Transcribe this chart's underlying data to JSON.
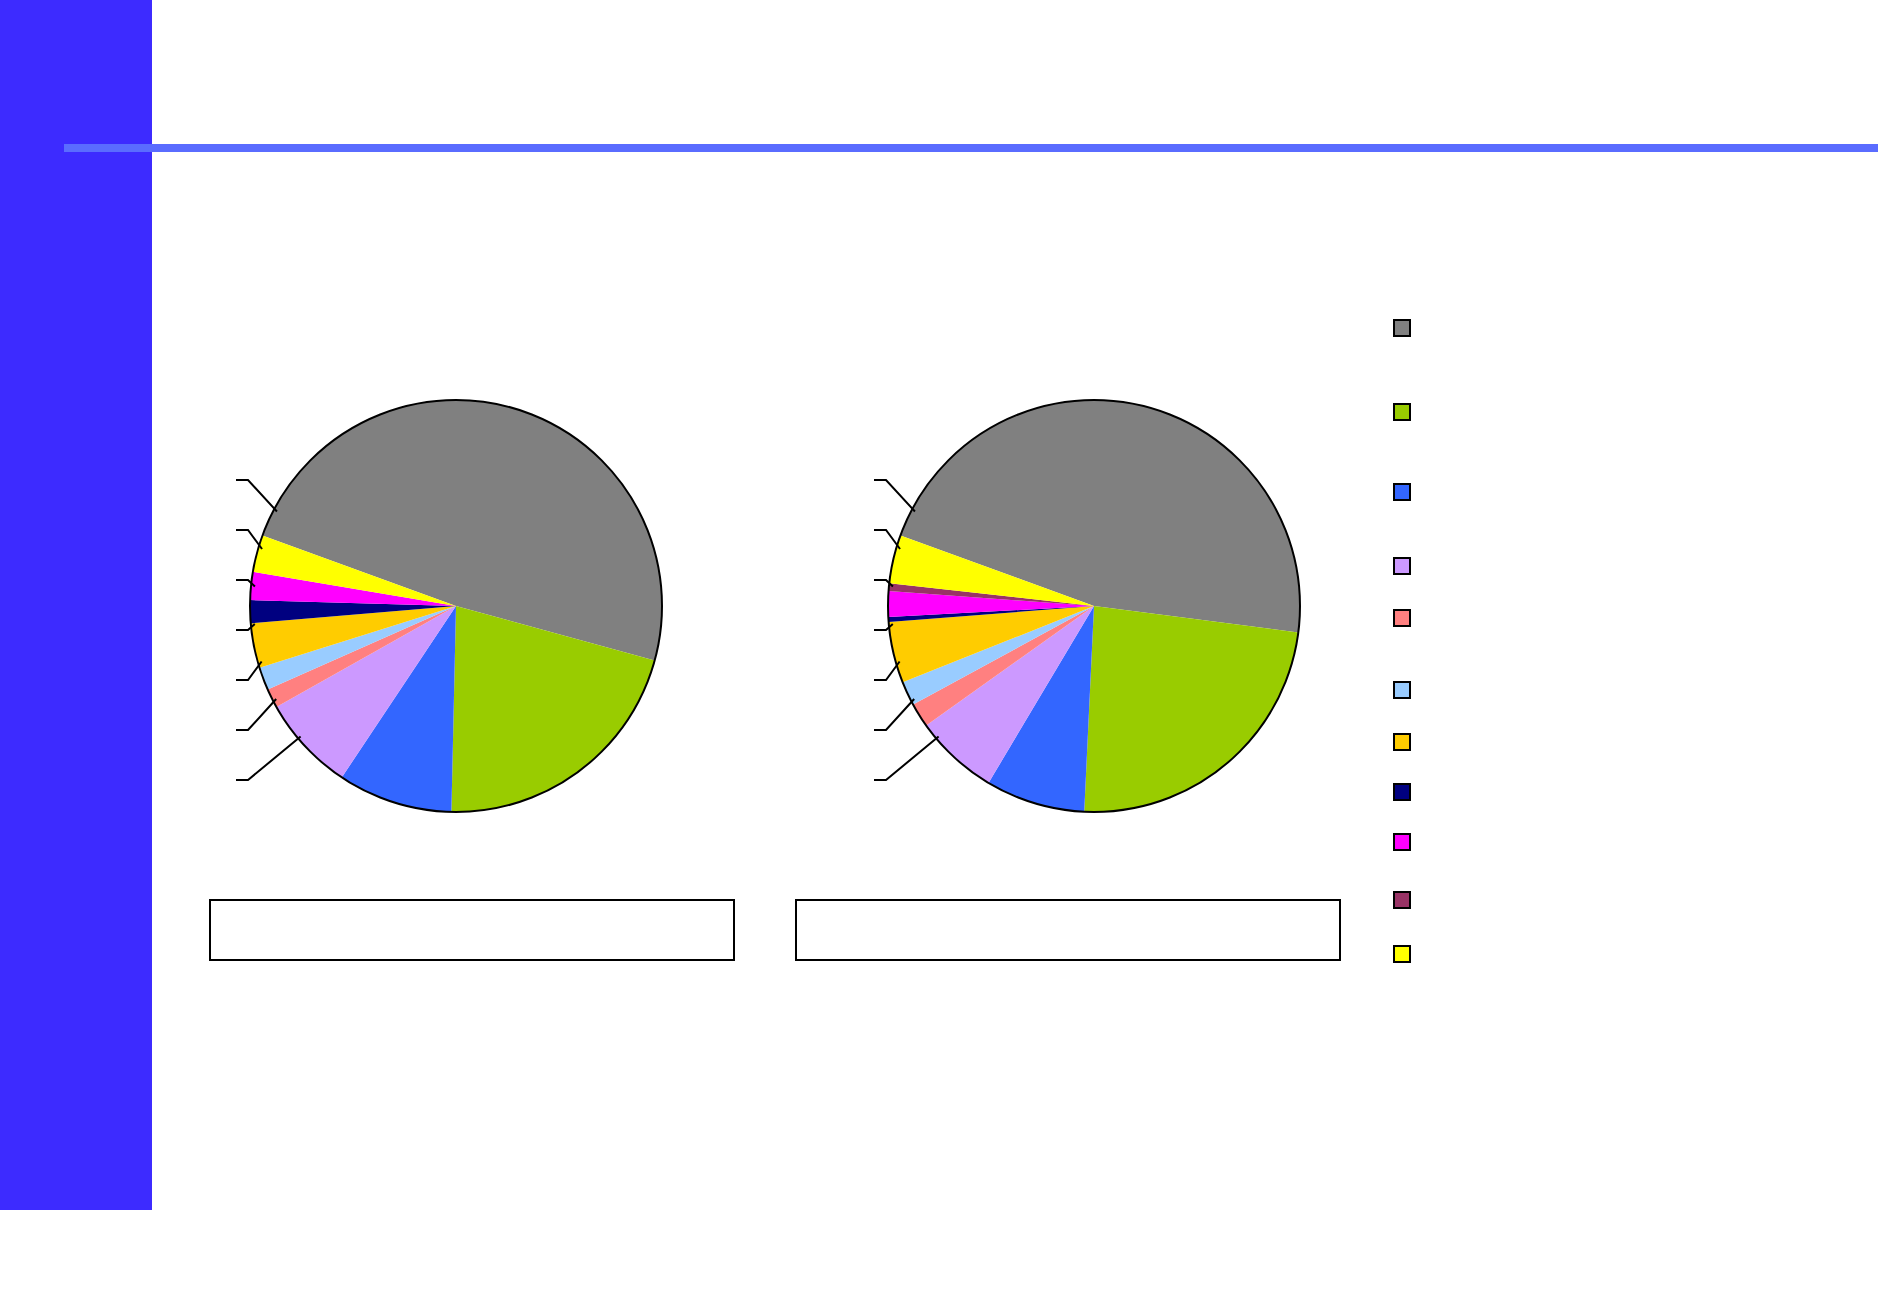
{
  "chart_data": [
    {
      "type": "pie",
      "categories": [
        null,
        null,
        null,
        null,
        null,
        null,
        null,
        null,
        null,
        null,
        null
      ],
      "values": [
        48.7,
        21.1,
        9.0,
        7.5,
        1.5,
        1.8,
        3.5,
        1.8,
        2.2,
        0,
        2.9
      ],
      "colors": [
        "#808080",
        "#99cc00",
        "#3366ff",
        "#cc99ff",
        "#ff8080",
        "#99ccff",
        "#ffcc00",
        "#000080",
        "#ff00ff",
        "#993366",
        "#ffff00"
      ]
    },
    {
      "type": "pie",
      "categories": [
        null,
        null,
        null,
        null,
        null,
        null,
        null,
        null,
        null,
        null,
        null
      ],
      "values": [
        46.5,
        23.7,
        7.8,
        6.6,
        1.9,
        1.9,
        4.8,
        0.4,
        2.0,
        0.6,
        3.8
      ],
      "colors": [
        "#808080",
        "#99cc00",
        "#3366ff",
        "#cc99ff",
        "#ff8080",
        "#99ccff",
        "#ffcc00",
        "#000080",
        "#ff00ff",
        "#993366",
        "#ffff00"
      ]
    }
  ]
}
